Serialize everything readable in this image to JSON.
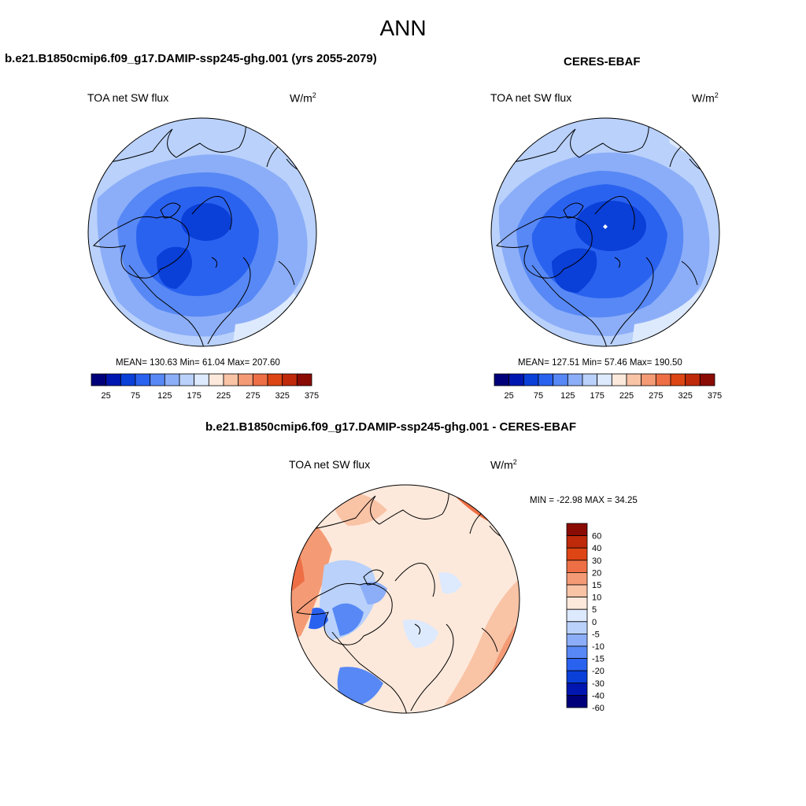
{
  "figure_title": "ANN",
  "panels": [
    {
      "title": "b.e21.B1850cmip6.f09_g17.DAMIP-ssp245-ghg.001 (yrs 2055-2079)",
      "variable": "TOA net SW flux",
      "units_base": "W/m",
      "units_exp": "2",
      "stats_line": "MEAN= 130.63  Min=  61.04  Max= 207.60",
      "mean": 130.63,
      "min": 61.04,
      "max": 207.6
    },
    {
      "title": "CERES-EBAF",
      "variable": "TOA net SW flux",
      "units_base": "W/m",
      "units_exp": "2",
      "stats_line": "MEAN= 127.51  Min=  57.46  Max= 190.50",
      "mean": 127.51,
      "min": 57.46,
      "max": 190.5
    },
    {
      "title": "b.e21.B1850cmip6.f09_g17.DAMIP-ssp245-ghg.001 - CERES-EBAF",
      "variable": "TOA net SW flux",
      "units_base": "W/m",
      "units_exp": "2",
      "stats_line": "MIN = -22.98 MAX =  34.25",
      "min": -22.98,
      "max": 34.25
    }
  ],
  "colorbars": {
    "field": {
      "colors": [
        "#00007a",
        "#0016b0",
        "#0a3fd8",
        "#2a62f0",
        "#5788f5",
        "#8caef8",
        "#b9d1fb",
        "#dde9fd",
        "#fde9db",
        "#f9c3a6",
        "#f49b76",
        "#ee6f45",
        "#dd4514",
        "#bf2a0a",
        "#8a0b04"
      ],
      "tick_labels": [
        "25",
        "75",
        "125",
        "175",
        "225",
        "275",
        "325",
        "375"
      ]
    },
    "diff": {
      "colors": [
        "#00007a",
        "#0016b0",
        "#0a3fd8",
        "#2a62f0",
        "#5788f5",
        "#8caef8",
        "#b9d1fb",
        "#dde9fd",
        "#fde9db",
        "#f9c3a6",
        "#f49b76",
        "#ee6f45",
        "#dd4514",
        "#bf2a0a",
        "#8a0b04"
      ],
      "tick_labels": [
        "-60",
        "-40",
        "-30",
        "-20",
        "-15",
        "-10",
        "-5",
        "0",
        "5",
        "10",
        "15",
        "20",
        "30",
        "40",
        "60"
      ]
    }
  }
}
